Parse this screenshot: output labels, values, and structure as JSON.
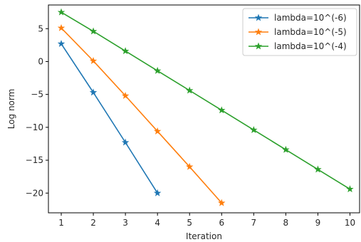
{
  "chart_data": {
    "type": "line",
    "title": "",
    "xlabel": "Iteration",
    "ylabel": "Log norm",
    "xlim": [
      0.6,
      10.3
    ],
    "ylim": [
      -23.0,
      8.6
    ],
    "xticks": [
      1,
      2,
      3,
      4,
      5,
      6,
      7,
      8,
      9,
      10
    ],
    "yticks": [
      5,
      0,
      -5,
      -10,
      -15,
      -20
    ],
    "yticklabels": [
      "5",
      "0",
      "−5",
      "−10",
      "−15",
      "−20"
    ],
    "grid": false,
    "legend_position": "top-right",
    "marker": "star",
    "series": [
      {
        "name": "lambda=10^(-6)",
        "color": "#1f77b4",
        "x": [
          1,
          2,
          3,
          4
        ],
        "y": [
          2.7,
          -4.7,
          -12.3,
          -20.0
        ]
      },
      {
        "name": "lambda=10^(-5)",
        "color": "#ff7f0e",
        "x": [
          1,
          2,
          3,
          4,
          5,
          6
        ],
        "y": [
          5.1,
          0.1,
          -5.2,
          -10.6,
          -16.0,
          -21.5
        ]
      },
      {
        "name": "lambda=10^(-4)",
        "color": "#2ca02c",
        "x": [
          1,
          2,
          3,
          4,
          5,
          6,
          7,
          8,
          9,
          10
        ],
        "y": [
          7.5,
          4.6,
          1.6,
          -1.4,
          -4.4,
          -7.4,
          -10.4,
          -13.4,
          -16.4,
          -19.4
        ]
      }
    ]
  }
}
